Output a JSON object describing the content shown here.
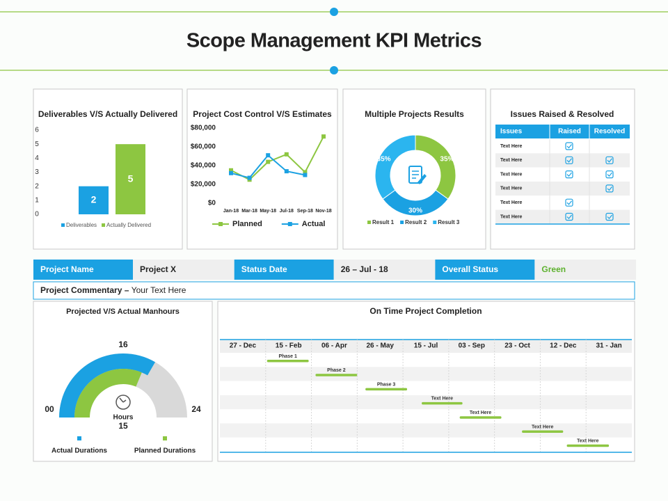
{
  "title": "Scope Management KPI Metrics",
  "chart_data": [
    {
      "type": "bar",
      "title": "Deliverables V/S Actually Delivered",
      "categories": [
        null
      ],
      "series": [
        {
          "name": "Deliverables",
          "color": "#1ba1e2",
          "values": [
            2
          ]
        },
        {
          "name": "Actually Delivered",
          "color": "#8dc641",
          "values": [
            5
          ]
        }
      ],
      "ylim": [
        0,
        6
      ],
      "yticks": [
        0,
        1,
        2,
        3,
        4,
        5,
        6
      ],
      "legend": "bottom"
    },
    {
      "type": "line",
      "title": "Project Cost Control V/S Estimates",
      "categories": [
        "Jan-18",
        "Mar-18",
        "May-18",
        "Jul-18",
        "Sep-18",
        "Nov-18"
      ],
      "series": [
        {
          "name": "Planned",
          "color": "#8dc641",
          "values": [
            35000,
            25000,
            44000,
            52000,
            33000,
            71000
          ]
        },
        {
          "name": "Actual",
          "color": "#1ba1e2",
          "values": [
            32000,
            27000,
            51000,
            34000,
            30000,
            null
          ]
        }
      ],
      "ylim": [
        0,
        80000
      ],
      "yticks": [
        {
          "value": 0,
          "label": "$0"
        },
        {
          "value": 20000,
          "label": "$20,000"
        },
        {
          "value": 40000,
          "label": "$40,000"
        },
        {
          "value": 60000,
          "label": "$60,000"
        },
        {
          "value": 80000,
          "label": "$80,000"
        }
      ],
      "legend": "bottom"
    },
    {
      "type": "pie",
      "title": "Multiple Projects Results",
      "categories": [
        "Result 1",
        "Result 2",
        "Result 3"
      ],
      "values": [
        35,
        30,
        35
      ],
      "value_labels": [
        "35%",
        "30%",
        "35%"
      ],
      "colors": [
        "#8dc641",
        "#1ba1e2",
        "#2bb5ef"
      ],
      "legend": "bottom"
    },
    {
      "type": "gauge",
      "title": "Projected V/S Actual Manhours",
      "unit_label": "Hours",
      "series": [
        {
          "name": "Actual Durations",
          "color": "#1ba1e2",
          "values": [
            16
          ]
        },
        {
          "name": "Planned Durations",
          "color": "#8dc641",
          "values": [
            15
          ]
        }
      ],
      "ylim": [
        0,
        24
      ],
      "yticks": [
        {
          "value": 0,
          "label": "00"
        },
        24
      ]
    }
  ],
  "issues": {
    "title": "Issues Raised & Resolved",
    "columns": [
      "Issues",
      "Raised",
      "Resolved"
    ],
    "rows": [
      {
        "issue": "Text Here",
        "raised": true,
        "resolved": false
      },
      {
        "issue": "Text Here",
        "raised": true,
        "resolved": true
      },
      {
        "issue": "Text Here",
        "raised": true,
        "resolved": true
      },
      {
        "issue": "Text Here",
        "raised": false,
        "resolved": true
      },
      {
        "issue": "Text Here",
        "raised": true,
        "resolved": false
      },
      {
        "issue": "Text Here",
        "raised": true,
        "resolved": true
      }
    ]
  },
  "status": {
    "cells": [
      {
        "label": "Project Name",
        "value": "Project X"
      },
      {
        "label": "Status Date",
        "value": "26 – Jul - 18"
      },
      {
        "label": "Overall Status",
        "value": "Green"
      }
    ],
    "commentary_label": "Project Commentary –",
    "commentary": "Your Text Here"
  },
  "timeline": {
    "title": "On Time Project Completion",
    "dates": [
      "27 - Dec",
      "15 - Feb",
      "06 - Apr",
      "26 - May",
      "15 - Jul",
      "03 - Sep",
      "23 - Oct",
      "12 - Dec",
      "31 - Jan"
    ],
    "tasks": [
      {
        "label": "Phase 1",
        "start": 1.03,
        "end": 1.94
      },
      {
        "label": "Phase 2",
        "start": 2.09,
        "end": 3.0
      },
      {
        "label": "Phase 3",
        "start": 3.18,
        "end": 4.09
      },
      {
        "label": "Text Here",
        "start": 4.41,
        "end": 5.3
      },
      {
        "label": "Text Here",
        "start": 5.24,
        "end": 6.15
      },
      {
        "label": "Text Here",
        "start": 6.6,
        "end": 7.5
      },
      {
        "label": "Text Here",
        "start": 7.58,
        "end": 8.5
      }
    ]
  }
}
